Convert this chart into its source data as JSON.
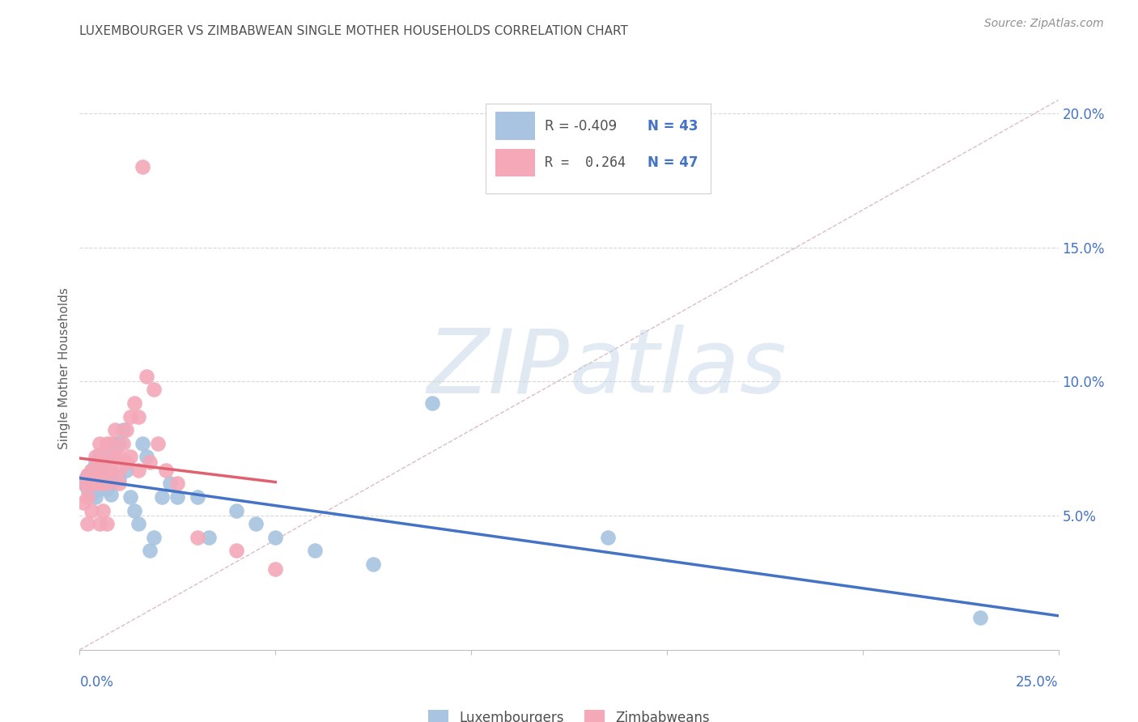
{
  "title": "LUXEMBOURGER VS ZIMBABWEAN SINGLE MOTHER HOUSEHOLDS CORRELATION CHART",
  "source": "Source: ZipAtlas.com",
  "ylabel": "Single Mother Households",
  "xlim": [
    0,
    0.25
  ],
  "ylim": [
    0,
    0.21
  ],
  "yticks": [
    0.05,
    0.1,
    0.15,
    0.2
  ],
  "ytick_labels": [
    "5.0%",
    "10.0%",
    "15.0%",
    "20.0%"
  ],
  "watermark_zip": "ZIP",
  "watermark_atlas": "atlas",
  "blue_color": "#a8c4e0",
  "pink_color": "#f4a8b8",
  "blue_line_color": "#4472c4",
  "pink_line_color": "#e06070",
  "diag_line_color": "#d0a0a8",
  "title_color": "#505050",
  "axis_label_color": "#4472c4",
  "ylabel_color": "#606060",
  "source_color": "#909090",
  "legend_text_color": "#505050",
  "blue_scatter_x": [
    0.001,
    0.002,
    0.002,
    0.003,
    0.003,
    0.003,
    0.004,
    0.004,
    0.004,
    0.005,
    0.005,
    0.005,
    0.006,
    0.006,
    0.007,
    0.007,
    0.008,
    0.008,
    0.009,
    0.01,
    0.01,
    0.011,
    0.012,
    0.013,
    0.014,
    0.015,
    0.016,
    0.017,
    0.018,
    0.019,
    0.021,
    0.023,
    0.025,
    0.03,
    0.033,
    0.04,
    0.045,
    0.05,
    0.06,
    0.075,
    0.09,
    0.135,
    0.23
  ],
  "blue_scatter_y": [
    0.063,
    0.065,
    0.06,
    0.062,
    0.058,
    0.067,
    0.063,
    0.057,
    0.07,
    0.065,
    0.06,
    0.073,
    0.062,
    0.068,
    0.06,
    0.072,
    0.062,
    0.058,
    0.077,
    0.064,
    0.077,
    0.082,
    0.067,
    0.057,
    0.052,
    0.047,
    0.077,
    0.072,
    0.037,
    0.042,
    0.057,
    0.062,
    0.057,
    0.057,
    0.042,
    0.052,
    0.047,
    0.042,
    0.037,
    0.032,
    0.092,
    0.042,
    0.012
  ],
  "pink_scatter_x": [
    0.001,
    0.001,
    0.002,
    0.002,
    0.002,
    0.003,
    0.003,
    0.003,
    0.004,
    0.004,
    0.004,
    0.005,
    0.005,
    0.005,
    0.005,
    0.006,
    0.006,
    0.006,
    0.007,
    0.007,
    0.007,
    0.007,
    0.008,
    0.008,
    0.009,
    0.009,
    0.01,
    0.01,
    0.01,
    0.011,
    0.012,
    0.012,
    0.013,
    0.013,
    0.014,
    0.015,
    0.015,
    0.016,
    0.017,
    0.018,
    0.019,
    0.02,
    0.022,
    0.025,
    0.03,
    0.04,
    0.05
  ],
  "pink_scatter_y": [
    0.062,
    0.055,
    0.065,
    0.057,
    0.047,
    0.067,
    0.062,
    0.052,
    0.072,
    0.067,
    0.062,
    0.077,
    0.07,
    0.062,
    0.047,
    0.072,
    0.067,
    0.052,
    0.077,
    0.067,
    0.062,
    0.047,
    0.077,
    0.067,
    0.082,
    0.072,
    0.072,
    0.067,
    0.062,
    0.077,
    0.082,
    0.07,
    0.087,
    0.072,
    0.092,
    0.087,
    0.067,
    0.18,
    0.102,
    0.07,
    0.097,
    0.077,
    0.067,
    0.062,
    0.042,
    0.037,
    0.03
  ]
}
